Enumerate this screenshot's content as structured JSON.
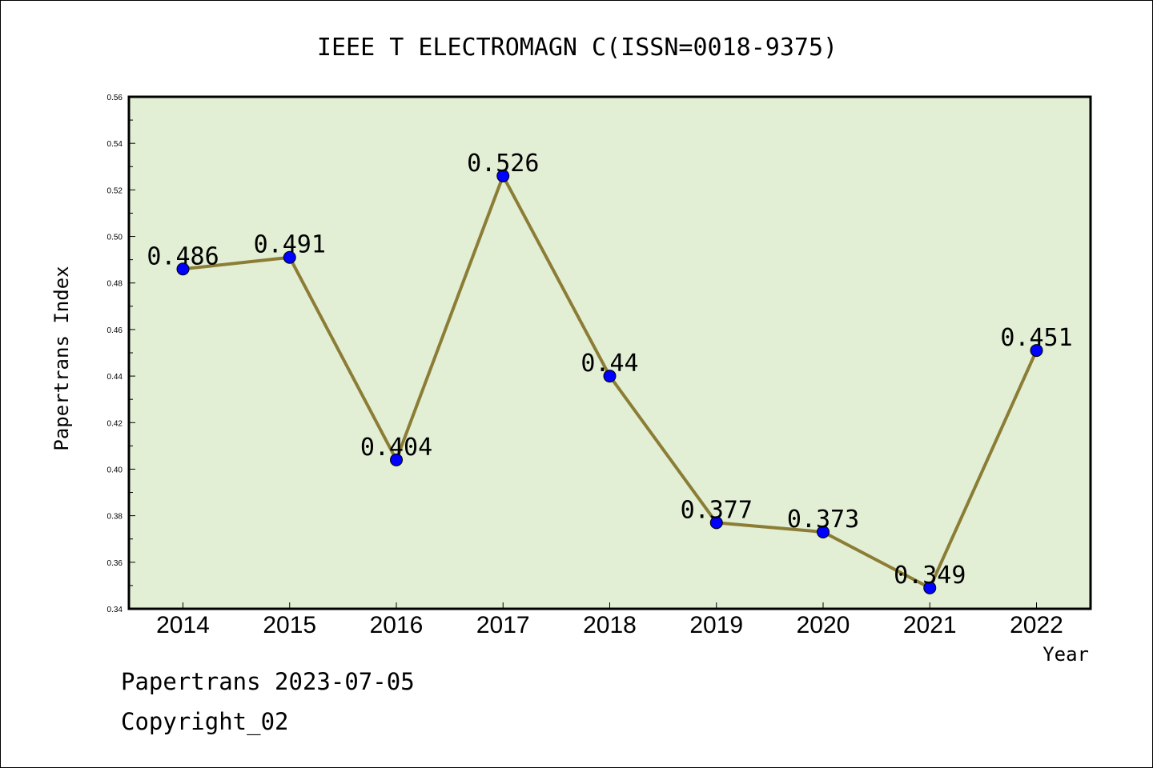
{
  "chart_data": {
    "type": "line",
    "title": "IEEE T ELECTROMAGN C(ISSN=0018-9375)",
    "xlabel": "Year",
    "ylabel": "Papertrans Index",
    "categories": [
      "2014",
      "2015",
      "2016",
      "2017",
      "2018",
      "2019",
      "2020",
      "2021",
      "2022"
    ],
    "values": [
      0.486,
      0.491,
      0.404,
      0.526,
      0.44,
      0.377,
      0.373,
      0.349,
      0.451
    ],
    "data_labels": [
      "0.486",
      "0.491",
      "0.404",
      "0.526",
      "0.44",
      "0.377",
      "0.373",
      "0.349",
      "0.451"
    ],
    "ylim": [
      0.34,
      0.56
    ],
    "yticks": [
      "0.34",
      "0.36",
      "0.38",
      "0.40",
      "0.42",
      "0.44",
      "0.46",
      "0.48",
      "0.50",
      "0.52",
      "0.54",
      "0.56"
    ],
    "grid": false,
    "plot_background": "#e2efd5",
    "line_color": "#8b7d35",
    "marker_color": "#0000ff"
  },
  "footer": {
    "line1": "Papertrans 2023-07-05",
    "line2": "Copyright_02"
  }
}
